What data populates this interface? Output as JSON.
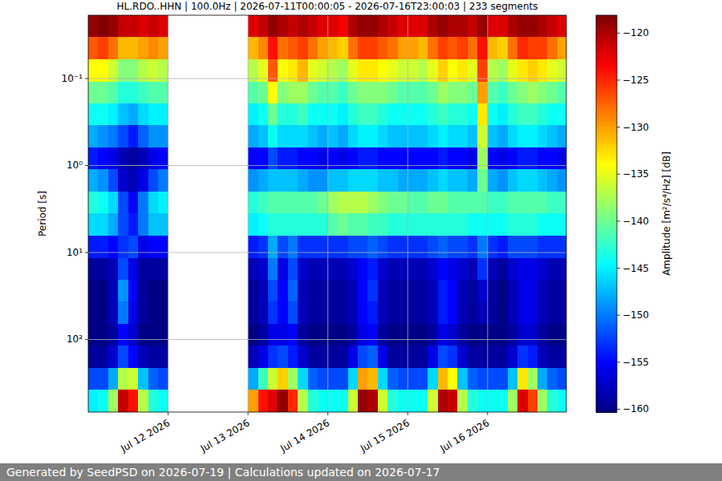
{
  "chart_data": {
    "type": "heatmap",
    "title": "HL.RDO..HHN | 100.0Hz | 2026-07-11T00:00:05 - 2026-07-16T23:00:03 | 233 segments",
    "y_label": "Period [s]",
    "footer": "Generated by SeedPSD on 2026-07-19 | Calculations updated on 2026-07-17",
    "log": "y",
    "grid": true,
    "xlim": [
      "2026-07-11T00:00",
      "2026-07-16T23:40"
    ],
    "xticks": [
      {
        "value": "2026-07-12T00:00",
        "label": "Jul 12 2026"
      },
      {
        "value": "2026-07-13T00:00",
        "label": "Jul 13 2026"
      },
      {
        "value": "2026-07-14T00:00",
        "label": "Jul 14 2026"
      },
      {
        "value": "2026-07-15T00:00",
        "label": "Jul 15 2026"
      },
      {
        "value": "2026-07-16T00:00",
        "label": "Jul 16 2026"
      }
    ],
    "ylim": [
      0.0187,
      683
    ],
    "yticks": [
      {
        "value": 0.1,
        "label": "10⁻¹"
      },
      {
        "value": 1,
        "label": "10⁰"
      },
      {
        "value": 10,
        "label": "10¹"
      },
      {
        "value": 100,
        "label": "10²"
      }
    ],
    "x_bins": [
      "2026-07-11T00:00",
      "2026-07-11T03:00",
      "2026-07-11T06:00",
      "2026-07-11T09:00",
      "2026-07-11T12:00",
      "2026-07-11T15:00",
      "2026-07-11T18:00",
      "2026-07-11T21:00",
      "2026-07-12T00:00",
      "2026-07-12T03:00",
      "2026-07-12T06:00",
      "2026-07-12T09:00",
      "2026-07-12T12:00",
      "2026-07-12T15:00",
      "2026-07-12T18:00",
      "2026-07-12T21:00",
      "2026-07-13T00:00",
      "2026-07-13T03:00",
      "2026-07-13T06:00",
      "2026-07-13T09:00",
      "2026-07-13T12:00",
      "2026-07-13T15:00",
      "2026-07-13T18:00",
      "2026-07-13T21:00",
      "2026-07-14T00:00",
      "2026-07-14T03:00",
      "2026-07-14T06:00",
      "2026-07-14T09:00",
      "2026-07-14T12:00",
      "2026-07-14T15:00",
      "2026-07-14T18:00",
      "2026-07-14T21:00",
      "2026-07-15T00:00",
      "2026-07-15T03:00",
      "2026-07-15T06:00",
      "2026-07-15T09:00",
      "2026-07-15T12:00",
      "2026-07-15T15:00",
      "2026-07-15T18:00",
      "2026-07-15T21:00",
      "2026-07-16T00:00",
      "2026-07-16T03:00",
      "2026-07-16T06:00",
      "2026-07-16T09:00",
      "2026-07-16T12:00",
      "2026-07-16T15:00",
      "2026-07-16T18:00",
      "2026-07-16T21:00",
      "2026-07-16T23:40"
    ],
    "y_bins": [
      0.0187,
      0.0335,
      0.0601,
      0.108,
      0.193,
      0.346,
      0.62,
      1.11,
      1.99,
      3.57,
      6.4,
      11.5,
      20.6,
      36.9,
      66.1,
      118.5,
      212,
      381,
      683
    ],
    "values": [
      [
        -119,
        -118,
        -119,
        -121,
        -121,
        -122,
        -121,
        -122,
        null,
        null,
        null,
        null,
        null,
        null,
        null,
        null,
        -122,
        -121,
        -119,
        -120,
        -121,
        -120,
        -121,
        -122,
        -122,
        -123,
        -120,
        -119,
        -119,
        -120,
        -121,
        -122,
        -122,
        -122,
        -120,
        -119,
        -120,
        -120,
        -121,
        -119,
        -122,
        -122,
        -120,
        -119,
        -119,
        -120,
        -121,
        -122
      ],
      [
        -127,
        -126,
        -128,
        -131,
        -131,
        -130,
        -129,
        -130,
        null,
        null,
        null,
        null,
        null,
        null,
        null,
        null,
        -131,
        -129,
        -124,
        -128,
        -127,
        -126,
        -128,
        -130,
        -131,
        -132,
        -128,
        -126,
        -126,
        -127,
        -128,
        -130,
        -130,
        -131,
        -128,
        -126,
        -127,
        -126,
        -128,
        -124,
        -131,
        -132,
        -128,
        -125,
        -126,
        -126,
        -128,
        -130
      ],
      [
        -134,
        -134,
        -136,
        -139,
        -139,
        -137,
        -136,
        -137,
        null,
        null,
        null,
        null,
        null,
        null,
        null,
        null,
        -137,
        -135,
        -127,
        -134,
        -133,
        -131,
        -135,
        -136,
        -137,
        -138,
        -135,
        -133,
        -133,
        -134,
        -135,
        -136,
        -136,
        -137,
        -135,
        -132,
        -134,
        -133,
        -135,
        -126,
        -137,
        -138,
        -135,
        -133,
        -132,
        -133,
        -135,
        -136
      ],
      [
        -140,
        -140,
        -141,
        -143,
        -143,
        -142,
        -141,
        -141,
        null,
        null,
        null,
        null,
        null,
        null,
        null,
        null,
        -141,
        -140,
        -134,
        -139,
        -138,
        -138,
        -140,
        -141,
        -141,
        -142,
        -140,
        -139,
        -139,
        -139,
        -140,
        -141,
        -141,
        -141,
        -140,
        -138,
        -139,
        -139,
        -140,
        -130,
        -141,
        -142,
        -140,
        -139,
        -138,
        -139,
        -140,
        -141
      ],
      [
        -144,
        -144,
        -145,
        -147,
        -148,
        -146,
        -145,
        -145,
        null,
        null,
        null,
        null,
        null,
        null,
        null,
        null,
        -145,
        -144,
        -140,
        -143,
        -143,
        -142,
        -144,
        -144,
        -144,
        -145,
        -143,
        -142,
        -142,
        -143,
        -144,
        -144,
        -144,
        -144,
        -143,
        -142,
        -143,
        -143,
        -144,
        -133,
        -144,
        -145,
        -143,
        -142,
        -142,
        -143,
        -144,
        -144
      ],
      [
        -148,
        -149,
        -150,
        -152,
        -154,
        -151,
        -149,
        -149,
        null,
        null,
        null,
        null,
        null,
        null,
        null,
        null,
        -148,
        -147,
        -144,
        -146,
        -146,
        -146,
        -147,
        -148,
        -147,
        -148,
        -146,
        -145,
        -145,
        -146,
        -147,
        -147,
        -147,
        -147,
        -146,
        -145,
        -146,
        -146,
        -147,
        -136,
        -147,
        -148,
        -146,
        -145,
        -145,
        -146,
        -147,
        -148
      ],
      [
        -154,
        -155,
        -156,
        -158,
        -159,
        -158,
        -156,
        -155,
        null,
        null,
        null,
        null,
        null,
        null,
        null,
        null,
        -155,
        -155,
        -152,
        -154,
        -154,
        -155,
        -155,
        -156,
        -155,
        -156,
        -155,
        -154,
        -154,
        -155,
        -155,
        -155,
        -155,
        -155,
        -155,
        -154,
        -155,
        -155,
        -156,
        -138,
        -155,
        -156,
        -155,
        -154,
        -154,
        -155,
        -155,
        -156
      ],
      [
        -148,
        -149,
        -152,
        -157,
        -158,
        -156,
        -152,
        -150,
        null,
        null,
        null,
        null,
        null,
        null,
        null,
        null,
        -149,
        -148,
        -147,
        -147,
        -147,
        -148,
        -149,
        -149,
        -147,
        -147,
        -146,
        -146,
        -146,
        -147,
        -147,
        -148,
        -148,
        -148,
        -147,
        -146,
        -147,
        -147,
        -148,
        -140,
        -148,
        -149,
        -147,
        -146,
        -146,
        -147,
        -148,
        -149
      ],
      [
        -143,
        -144,
        -146,
        -152,
        -155,
        -150,
        -146,
        -145,
        null,
        null,
        null,
        null,
        null,
        null,
        null,
        null,
        -143,
        -142,
        -141,
        -141,
        -141,
        -141,
        -141,
        -140,
        -138,
        -137,
        -137,
        -137,
        -138,
        -139,
        -140,
        -140,
        -141,
        -141,
        -140,
        -140,
        -141,
        -141,
        -141,
        -141,
        -142,
        -142,
        -141,
        -141,
        -141,
        -141,
        -142,
        -142
      ],
      [
        -146,
        -146,
        -148,
        -152,
        -154,
        -150,
        -147,
        -147,
        null,
        null,
        null,
        null,
        null,
        null,
        null,
        null,
        -145,
        -144,
        -143,
        -143,
        -143,
        -143,
        -143,
        -143,
        -141,
        -140,
        -141,
        -141,
        -142,
        -142,
        -143,
        -143,
        -143,
        -143,
        -143,
        -143,
        -143,
        -143,
        -144,
        -144,
        -144,
        -144,
        -143,
        -143,
        -143,
        -144,
        -144,
        -144
      ],
      [
        -154,
        -154,
        -155,
        -153,
        -152,
        -156,
        -155,
        -155,
        null,
        null,
        null,
        null,
        null,
        null,
        null,
        null,
        -154,
        -153,
        -148,
        -152,
        -150,
        -153,
        -153,
        -153,
        -153,
        -153,
        -152,
        -152,
        -151,
        -152,
        -153,
        -153,
        -153,
        -153,
        -152,
        -151,
        -152,
        -152,
        -153,
        -150,
        -153,
        -154,
        -152,
        -152,
        -152,
        -153,
        -153,
        -153
      ],
      [
        -159,
        -159,
        -158,
        -152,
        -156,
        -159,
        -159,
        -159,
        null,
        null,
        null,
        null,
        null,
        null,
        null,
        null,
        -158,
        -157,
        -150,
        -156,
        -152,
        -157,
        -158,
        -158,
        -158,
        -158,
        -157,
        -155,
        -154,
        -157,
        -158,
        -158,
        -158,
        -158,
        -157,
        -155,
        -156,
        -157,
        -158,
        -153,
        -158,
        -159,
        -157,
        -156,
        -156,
        -157,
        -158,
        -158
      ],
      [
        -160,
        -160,
        -158,
        -149,
        -155,
        -159,
        -160,
        -160,
        null,
        null,
        null,
        null,
        null,
        null,
        null,
        null,
        -159,
        -158,
        -152,
        -155,
        -151,
        -158,
        -159,
        -159,
        -159,
        -159,
        -158,
        -155,
        -153,
        -158,
        -159,
        -159,
        -159,
        -159,
        -158,
        -154,
        -155,
        -158,
        -159,
        -157,
        -159,
        -160,
        -158,
        -156,
        -156,
        -158,
        -159,
        -159
      ],
      [
        -160,
        -160,
        -158,
        -150,
        -156,
        -159,
        -160,
        -160,
        null,
        null,
        null,
        null,
        null,
        null,
        null,
        null,
        -159,
        -158,
        -153,
        -155,
        -152,
        -158,
        -159,
        -159,
        -159,
        -159,
        -158,
        -155,
        -154,
        -158,
        -159,
        -159,
        -159,
        -159,
        -158,
        -154,
        -155,
        -158,
        -159,
        -158,
        -159,
        -160,
        -158,
        -156,
        -156,
        -158,
        -159,
        -159
      ],
      [
        -160,
        -160,
        -159,
        -155,
        -157,
        -160,
        -160,
        -160,
        null,
        null,
        null,
        null,
        null,
        null,
        null,
        null,
        -160,
        -159,
        -156,
        -156,
        -155,
        -159,
        -160,
        -160,
        -160,
        -160,
        -159,
        -156,
        -155,
        -159,
        -160,
        -160,
        -160,
        -160,
        -159,
        -156,
        -157,
        -159,
        -160,
        -160,
        -160,
        -160,
        -159,
        -157,
        -157,
        -159,
        -160,
        -160
      ],
      [
        -159,
        -159,
        -157,
        -152,
        -155,
        -158,
        -159,
        -159,
        null,
        null,
        null,
        null,
        null,
        null,
        null,
        null,
        -158,
        -156,
        -153,
        -152,
        -154,
        -157,
        -159,
        -159,
        -159,
        -159,
        -156,
        -152,
        -151,
        -156,
        -159,
        -159,
        -159,
        -159,
        -156,
        -152,
        -153,
        -157,
        -159,
        -159,
        -159,
        -159,
        -157,
        -153,
        -154,
        -158,
        -159,
        -159
      ],
      [
        -152,
        -152,
        -148,
        -137,
        -136,
        -147,
        -151,
        -152,
        null,
        null,
        null,
        null,
        null,
        null,
        null,
        null,
        -148,
        -142,
        -136,
        -132,
        -138,
        -146,
        -151,
        -152,
        -152,
        -152,
        -146,
        -130,
        -131,
        -146,
        -151,
        -152,
        -152,
        -152,
        -146,
        -131,
        -134,
        -147,
        -151,
        -152,
        -152,
        -152,
        -147,
        -133,
        -138,
        -148,
        -151,
        -152
      ],
      [
        -145,
        -144,
        -138,
        -121,
        -124,
        -137,
        -143,
        -144,
        null,
        null,
        null,
        null,
        null,
        null,
        null,
        null,
        -130,
        -124,
        -122,
        -119,
        -125,
        -137,
        -143,
        -144,
        -144,
        -144,
        -136,
        -119,
        -120,
        -136,
        -143,
        -144,
        -144,
        -144,
        -136,
        -120,
        -121,
        -137,
        -143,
        -144,
        -144,
        -144,
        -138,
        -122,
        -126,
        -138,
        -143,
        -144
      ]
    ],
    "colorbar": {
      "label": "Amplitude [m²/s⁴/Hz] [dB]",
      "range": [
        -160.3,
        -118.1
      ],
      "ticks": [
        {
          "value": -120,
          "label": "−120"
        },
        {
          "value": -125,
          "label": "−125"
        },
        {
          "value": -130,
          "label": "−130"
        },
        {
          "value": -135,
          "label": "−135"
        },
        {
          "value": -140,
          "label": "−140"
        },
        {
          "value": -145,
          "label": "−145"
        },
        {
          "value": -150,
          "label": "−150"
        },
        {
          "value": -155,
          "label": "−155"
        },
        {
          "value": -160,
          "label": "−160"
        }
      ]
    }
  }
}
